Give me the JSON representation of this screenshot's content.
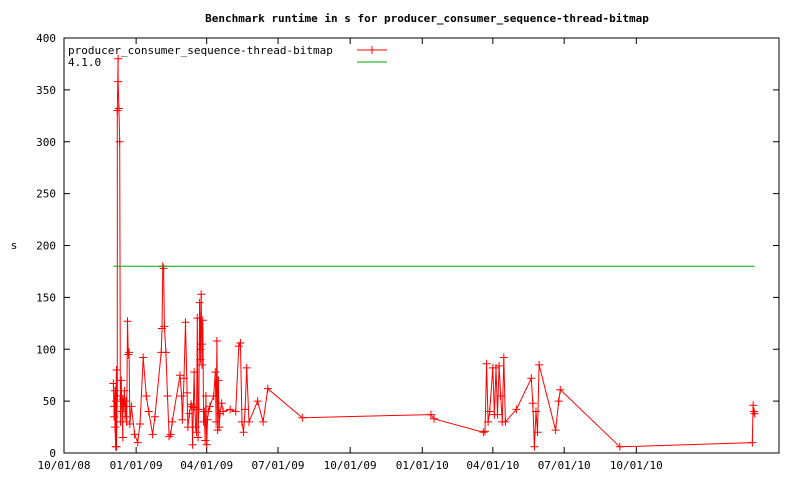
{
  "chart_data": {
    "type": "line",
    "title": "Benchmark runtime in s for producer_consumer_sequence-thread-bitmap",
    "ylabel": "s",
    "xlabel": "",
    "xlim": [
      "2008-10-01",
      "2011-04-01"
    ],
    "ylim": [
      0,
      400
    ],
    "x_ticks": [
      "10/01/08",
      "01/01/09",
      "04/01/09",
      "07/01/09",
      "10/01/09",
      "01/01/10",
      "04/01/10",
      "07/01/10",
      "10/01/10"
    ],
    "y_ticks": [
      0,
      50,
      100,
      150,
      200,
      250,
      300,
      350,
      400
    ],
    "grid": false,
    "legend_position": "top-left",
    "series": [
      {
        "name": "producer_consumer_sequence-thread-bitmap",
        "color": "#ff0000",
        "marker": "plus",
        "points": [
          [
            "2008-12-03",
            67
          ],
          [
            "2008-12-04",
            35
          ],
          [
            "2008-12-04",
            45
          ],
          [
            "2008-12-05",
            60
          ],
          [
            "2008-12-05",
            25
          ],
          [
            "2008-12-06",
            6
          ],
          [
            "2008-12-06",
            50
          ],
          [
            "2008-12-07",
            80
          ],
          [
            "2008-12-07",
            6
          ],
          [
            "2008-12-08",
            55
          ],
          [
            "2008-12-08",
            330
          ],
          [
            "2008-12-09",
            380
          ],
          [
            "2008-12-09",
            358
          ],
          [
            "2008-12-10",
            332
          ],
          [
            "2008-12-11",
            300
          ],
          [
            "2008-12-12",
            30
          ],
          [
            "2008-12-13",
            70
          ],
          [
            "2008-12-14",
            40
          ],
          [
            "2008-12-15",
            15
          ],
          [
            "2008-12-15",
            52
          ],
          [
            "2008-12-16",
            45
          ],
          [
            "2008-12-17",
            60
          ],
          [
            "2008-12-18",
            35
          ],
          [
            "2008-12-19",
            50
          ],
          [
            "2008-12-20",
            30
          ],
          [
            "2008-12-21",
            127
          ],
          [
            "2008-12-22",
            95
          ],
          [
            "2008-12-23",
            97
          ],
          [
            "2008-12-24",
            28
          ],
          [
            "2008-12-26",
            45
          ],
          [
            "2008-12-30",
            18
          ],
          [
            "2009-01-03",
            10
          ],
          [
            "2009-01-06",
            28
          ],
          [
            "2009-01-10",
            92
          ],
          [
            "2009-01-14",
            55
          ],
          [
            "2009-01-17",
            40
          ],
          [
            "2009-01-22",
            18
          ],
          [
            "2009-01-25",
            35
          ],
          [
            "2009-02-02",
            97
          ],
          [
            "2009-02-03",
            120
          ],
          [
            "2009-02-04",
            180
          ],
          [
            "2009-02-05",
            178
          ],
          [
            "2009-02-06",
            122
          ],
          [
            "2009-02-08",
            97
          ],
          [
            "2009-02-10",
            55
          ],
          [
            "2009-02-12",
            16
          ],
          [
            "2009-02-14",
            18
          ],
          [
            "2009-02-16",
            30
          ],
          [
            "2009-02-26",
            75
          ],
          [
            "2009-02-28",
            55
          ],
          [
            "2009-03-01",
            32
          ],
          [
            "2009-03-03",
            72
          ],
          [
            "2009-03-05",
            126
          ],
          [
            "2009-03-07",
            58
          ],
          [
            "2009-03-08",
            25
          ],
          [
            "2009-03-10",
            38
          ],
          [
            "2009-03-12",
            47
          ],
          [
            "2009-03-13",
            45
          ],
          [
            "2009-03-14",
            8
          ],
          [
            "2009-03-15",
            44
          ],
          [
            "2009-03-16",
            78
          ],
          [
            "2009-03-17",
            42
          ],
          [
            "2009-03-18",
            25
          ],
          [
            "2009-03-19",
            20
          ],
          [
            "2009-03-20",
            130
          ],
          [
            "2009-03-21",
            15
          ],
          [
            "2009-03-22",
            42
          ],
          [
            "2009-03-23",
            145
          ],
          [
            "2009-03-24",
            90
          ],
          [
            "2009-03-24",
            100
          ],
          [
            "2009-03-25",
            153
          ],
          [
            "2009-03-26",
            85
          ],
          [
            "2009-03-26",
            105
          ],
          [
            "2009-03-27",
            128
          ],
          [
            "2009-03-28",
            30
          ],
          [
            "2009-03-29",
            40
          ],
          [
            "2009-03-30",
            12
          ],
          [
            "2009-03-31",
            55
          ],
          [
            "2009-04-01",
            8
          ],
          [
            "2009-04-02",
            32
          ],
          [
            "2009-04-03",
            40
          ],
          [
            "2009-04-05",
            45
          ],
          [
            "2009-04-10",
            55
          ],
          [
            "2009-04-12",
            78
          ],
          [
            "2009-04-13",
            30
          ],
          [
            "2009-04-14",
            108
          ],
          [
            "2009-04-15",
            22
          ],
          [
            "2009-04-16",
            70
          ],
          [
            "2009-04-17",
            25
          ],
          [
            "2009-04-18",
            38
          ],
          [
            "2009-04-20",
            48
          ],
          [
            "2009-04-22",
            40
          ],
          [
            "2009-05-01",
            42
          ],
          [
            "2009-05-08",
            40
          ],
          [
            "2009-05-12",
            103
          ],
          [
            "2009-05-14",
            106
          ],
          [
            "2009-05-16",
            30
          ],
          [
            "2009-05-18",
            20
          ],
          [
            "2009-05-20",
            42
          ],
          [
            "2009-05-22",
            82
          ],
          [
            "2009-05-25",
            30
          ],
          [
            "2009-06-05",
            50
          ],
          [
            "2009-06-12",
            30
          ],
          [
            "2009-06-18",
            62
          ],
          [
            "2009-08-01",
            34
          ],
          [
            "2010-01-12",
            37
          ],
          [
            "2010-01-16",
            33
          ],
          [
            "2010-03-20",
            20
          ],
          [
            "2010-03-22",
            21
          ],
          [
            "2010-03-24",
            86
          ],
          [
            "2010-03-26",
            30
          ],
          [
            "2010-03-28",
            40
          ],
          [
            "2010-04-01",
            82
          ],
          [
            "2010-04-03",
            37
          ],
          [
            "2010-04-05",
            82
          ],
          [
            "2010-04-07",
            37
          ],
          [
            "2010-04-09",
            84
          ],
          [
            "2010-04-11",
            55
          ],
          [
            "2010-04-13",
            30
          ],
          [
            "2010-04-15",
            92
          ],
          [
            "2010-04-17",
            30
          ],
          [
            "2010-05-01",
            42
          ],
          [
            "2010-05-20",
            72
          ],
          [
            "2010-05-22",
            48
          ],
          [
            "2010-05-24",
            6
          ],
          [
            "2010-05-26",
            40
          ],
          [
            "2010-05-28",
            20
          ],
          [
            "2010-05-30",
            85
          ],
          [
            "2010-06-20",
            22
          ],
          [
            "2010-06-24",
            50
          ],
          [
            "2010-06-26",
            61
          ],
          [
            "2010-09-10",
            6
          ],
          [
            "2011-02-26",
            10
          ],
          [
            "2011-02-27",
            46
          ],
          [
            "2011-02-28",
            40
          ],
          [
            "2011-03-01",
            38
          ]
        ]
      },
      {
        "name": "4.1.0",
        "color": "#00aa00",
        "marker": "none",
        "points": [
          [
            "2008-12-03",
            180
          ],
          [
            "2011-03-01",
            180
          ]
        ]
      }
    ]
  }
}
